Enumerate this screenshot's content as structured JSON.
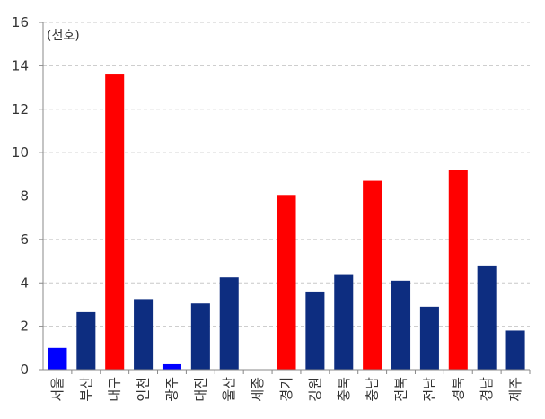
{
  "chart_data": {
    "type": "bar",
    "title": "",
    "ylabel": "(천호)",
    "xlabel": "",
    "ylim": [
      0,
      16
    ],
    "ytick_step": 2,
    "grid": true,
    "categories": [
      "서울",
      "부산",
      "대구",
      "인천",
      "광주",
      "대전",
      "울산",
      "세종",
      "경기",
      "강원",
      "충북",
      "충남",
      "전북",
      "전남",
      "경북",
      "경남",
      "제주"
    ],
    "values": [
      1.0,
      2.65,
      13.6,
      3.25,
      0.25,
      3.05,
      4.25,
      0.0,
      8.05,
      3.6,
      4.4,
      8.7,
      4.1,
      2.9,
      9.2,
      4.8,
      1.8
    ],
    "colors": [
      "#0000ff",
      "#0d2d80",
      "#ff0000",
      "#0d2d80",
      "#0000ff",
      "#0d2d80",
      "#0d2d80",
      "#0d2d80",
      "#ff0000",
      "#0d2d80",
      "#0d2d80",
      "#ff0000",
      "#0d2d80",
      "#0d2d80",
      "#ff0000",
      "#0d2d80",
      "#0d2d80"
    ]
  }
}
